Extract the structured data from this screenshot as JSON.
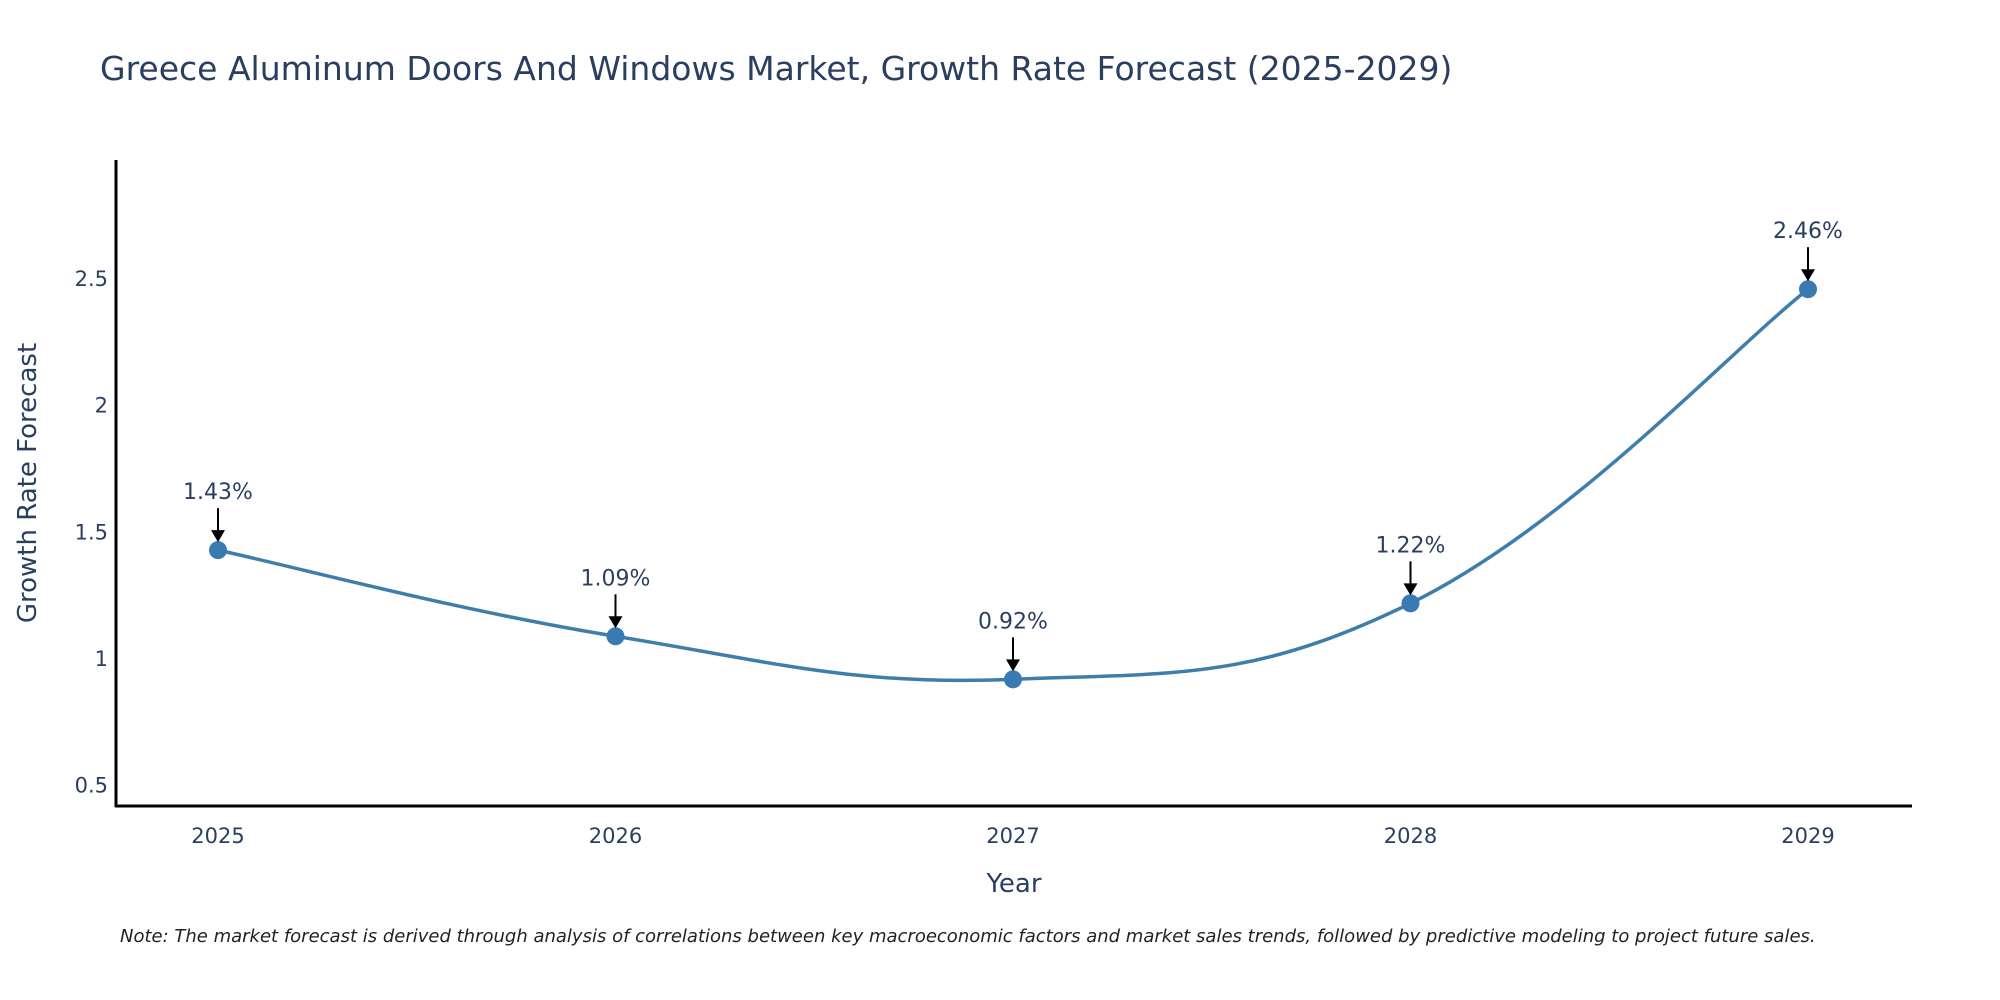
{
  "chart_data": {
    "type": "line",
    "title": "Greece Aluminum Doors And Windows Market, Growth Rate Forecast (2025-2029)",
    "xlabel": "Year",
    "ylabel": "Growth Rate Forecast",
    "categories": [
      "2025",
      "2026",
      "2027",
      "2028",
      "2029"
    ],
    "values": [
      1.43,
      1.09,
      0.92,
      1.22,
      2.46
    ],
    "data_labels": [
      "1.43%",
      "1.09%",
      "0.92%",
      "1.22%",
      "2.46%"
    ],
    "yticks": [
      0.5,
      1,
      1.5,
      2,
      2.5
    ],
    "ytick_labels": [
      "0.5",
      "1",
      "1.5",
      "2",
      "2.5"
    ],
    "ylim": [
      0.42,
      2.97
    ],
    "grid": false,
    "line_shape": "spline",
    "line_color": "#3f7eab",
    "marker_color": "#3a7ab3"
  },
  "note": "Note: The market forecast is derived through analysis of correlations between key macroeconomic factors and market sales trends, followed by predictive modeling to project future sales."
}
